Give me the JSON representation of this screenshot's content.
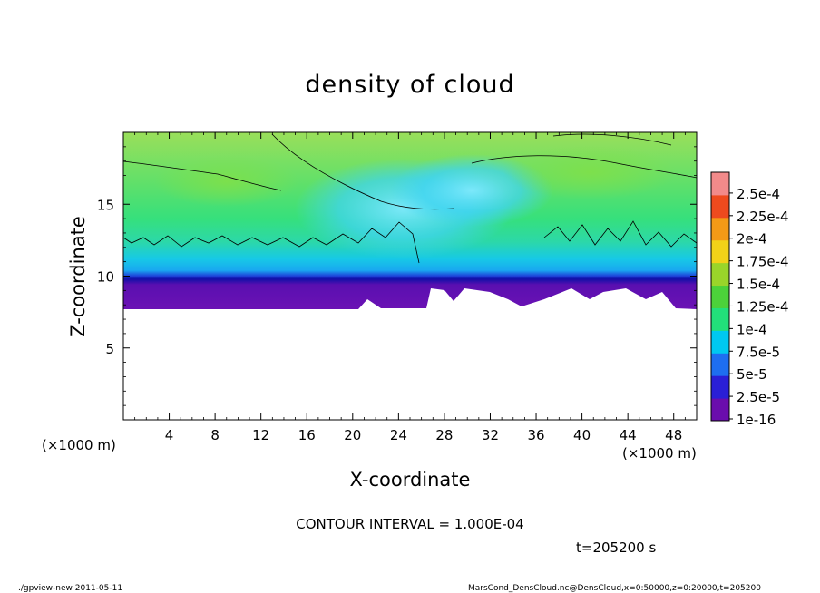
{
  "chart_data": {
    "type": "heatmap",
    "title": "density of cloud",
    "xlabel": "X-coordinate",
    "ylabel": "Z-coordinate",
    "x_unit": "(×1000 m)",
    "y_unit": "(×1000 m)",
    "xlim": [
      0,
      50
    ],
    "ylim": [
      0,
      20
    ],
    "x_ticks": [
      4,
      8,
      12,
      16,
      20,
      24,
      28,
      32,
      36,
      40,
      44,
      48
    ],
    "y_ticks": [
      5,
      10,
      15
    ],
    "colorbar": {
      "labels": [
        "1e-16",
        "2.5e-5",
        "5e-5",
        "7.5e-5",
        "1e-4",
        "1.25e-4",
        "1.5e-4",
        "1.75e-4",
        "2e-4",
        "2.25e-4",
        "2.5e-4"
      ],
      "colors": [
        "#6a0dad",
        "#2a1fd6",
        "#1e6ef0",
        "#00c8f0",
        "#22e07a",
        "#4cd23a",
        "#9ad52a",
        "#f2d218",
        "#f49a16",
        "#ee4a1e",
        "#f28a8a"
      ]
    },
    "cloud_base_z": 7.8,
    "contour_interval": "1.000E-04"
  },
  "footer": {
    "contour_text": "CONTOUR INTERVAL = 1.000E-04",
    "time_text": "t=205200 s",
    "left_credit": "./gpview-new  2011-05-11",
    "right_credit": "MarsCond_DensCloud.nc@DensCloud,x=0:50000,z=0:20000,t=205200"
  }
}
